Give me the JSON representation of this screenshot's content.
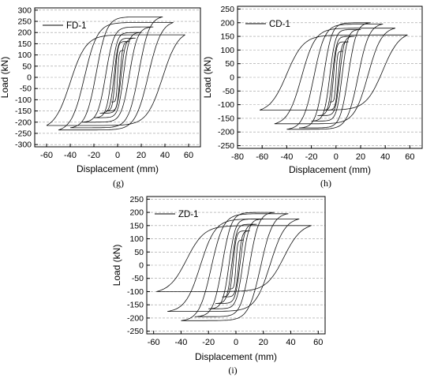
{
  "chart_data": [
    {
      "type": "line",
      "panel_label": "(g)",
      "legend": "FD-1",
      "legend_position": "top-left",
      "xlabel": "Displacement (mm)",
      "ylabel": "Load (kN)",
      "xlim": [
        -70,
        70
      ],
      "ylim": [
        -310,
        310
      ],
      "xticks": [
        -60,
        -40,
        -20,
        0,
        20,
        40,
        60
      ],
      "yticks": [
        -300,
        -250,
        -200,
        -150,
        -100,
        -50,
        0,
        50,
        100,
        150,
        200,
        250,
        300
      ],
      "grid": "dashed-horizontal",
      "cycles": [
        {
          "amp_neg": 5,
          "amp_pos": 5,
          "peak_neg": -110,
          "peak_pos": 120,
          "resid_neg": 0,
          "resid_pos": 0
        },
        {
          "amp_neg": 10,
          "amp_pos": 10,
          "peak_neg": -150,
          "peak_pos": 160,
          "resid_neg": 2,
          "resid_pos": 2
        },
        {
          "amp_neg": 15,
          "amp_pos": 15,
          "peak_neg": -160,
          "peak_pos": 175,
          "resid_neg": 3,
          "resid_pos": 3
        },
        {
          "amp_neg": 20,
          "amp_pos": 20,
          "peak_neg": -180,
          "peak_pos": 200,
          "resid_neg": 5,
          "resid_pos": 5
        },
        {
          "amp_neg": 30,
          "amp_pos": 30,
          "peak_neg": -200,
          "peak_pos": 225,
          "resid_neg": 10,
          "resid_pos": 10
        },
        {
          "amp_neg": 40,
          "amp_pos": 38,
          "peak_neg": -225,
          "peak_pos": 270,
          "resid_neg": 18,
          "resid_pos": 18
        },
        {
          "amp_neg": 50,
          "amp_pos": 47,
          "peak_neg": -235,
          "peak_pos": 245,
          "resid_neg": 28,
          "resid_pos": 26
        },
        {
          "amp_neg": 60,
          "amp_pos": 57,
          "peak_neg": -215,
          "peak_pos": 190,
          "resid_neg": 40,
          "resid_pos": 38
        }
      ]
    },
    {
      "type": "line",
      "panel_label": "(h)",
      "legend": "CD-1",
      "legend_position": "top-left",
      "xlabel": "Displacement (mm)",
      "ylabel": "Load (kN)",
      "xlim": [
        -80,
        70
      ],
      "ylim": [
        -260,
        260
      ],
      "xticks": [
        -80,
        -60,
        -40,
        -20,
        0,
        20,
        40,
        60
      ],
      "yticks": [
        -250,
        -200,
        -150,
        -100,
        -50,
        0,
        50,
        100,
        150,
        200,
        250
      ],
      "grid": "dashed-horizontal",
      "cycles": [
        {
          "amp_neg": 5,
          "amp_pos": 5,
          "peak_neg": -90,
          "peak_pos": 95,
          "resid_neg": 0,
          "resid_pos": 0
        },
        {
          "amp_neg": 10,
          "amp_pos": 10,
          "peak_neg": -120,
          "peak_pos": 130,
          "resid_neg": 2,
          "resid_pos": 2
        },
        {
          "amp_neg": 15,
          "amp_pos": 15,
          "peak_neg": -140,
          "peak_pos": 150,
          "resid_neg": 3,
          "resid_pos": 3
        },
        {
          "amp_neg": 20,
          "amp_pos": 20,
          "peak_neg": -160,
          "peak_pos": 175,
          "resid_neg": 5,
          "resid_pos": 5
        },
        {
          "amp_neg": 30,
          "amp_pos": 28,
          "peak_neg": -185,
          "peak_pos": 200,
          "resid_neg": 10,
          "resid_pos": 10
        },
        {
          "amp_neg": 40,
          "amp_pos": 38,
          "peak_neg": -190,
          "peak_pos": 195,
          "resid_neg": 18,
          "resid_pos": 18
        },
        {
          "amp_neg": 50,
          "amp_pos": 48,
          "peak_neg": -170,
          "peak_pos": 180,
          "resid_neg": 28,
          "resid_pos": 26
        },
        {
          "amp_neg": 62,
          "amp_pos": 58,
          "peak_neg": -120,
          "peak_pos": 155,
          "resid_neg": 40,
          "resid_pos": 38
        }
      ]
    },
    {
      "type": "line",
      "panel_label": "(i)",
      "legend": "ZD-1",
      "legend_position": "top-left",
      "xlabel": "Displacement (mm)",
      "ylabel": "Load (kN)",
      "xlim": [
        -65,
        65
      ],
      "ylim": [
        -260,
        260
      ],
      "xticks": [
        -60,
        -40,
        -20,
        0,
        20,
        40,
        60
      ],
      "yticks": [
        -250,
        -200,
        -150,
        -100,
        -50,
        0,
        50,
        100,
        150,
        200,
        250
      ],
      "grid": "dashed-horizontal",
      "cycles": [
        {
          "amp_neg": 5,
          "amp_pos": 5,
          "peak_neg": -90,
          "peak_pos": 95,
          "resid_neg": 0,
          "resid_pos": 0
        },
        {
          "amp_neg": 10,
          "amp_pos": 10,
          "peak_neg": -120,
          "peak_pos": 130,
          "resid_neg": 2,
          "resid_pos": 2
        },
        {
          "amp_neg": 15,
          "amp_pos": 15,
          "peak_neg": -145,
          "peak_pos": 155,
          "resid_neg": 3,
          "resid_pos": 3
        },
        {
          "amp_neg": 20,
          "amp_pos": 20,
          "peak_neg": -165,
          "peak_pos": 175,
          "resid_neg": 5,
          "resid_pos": 5
        },
        {
          "amp_neg": 30,
          "amp_pos": 28,
          "peak_neg": -195,
          "peak_pos": 200,
          "resid_neg": 10,
          "resid_pos": 10
        },
        {
          "amp_neg": 40,
          "amp_pos": 38,
          "peak_neg": -210,
          "peak_pos": 195,
          "resid_neg": 18,
          "resid_pos": 18
        },
        {
          "amp_neg": 50,
          "amp_pos": 46,
          "peak_neg": -175,
          "peak_pos": 175,
          "resid_neg": 26,
          "resid_pos": 25
        },
        {
          "amp_neg": 58,
          "amp_pos": 55,
          "peak_neg": -100,
          "peak_pos": 150,
          "resid_neg": 36,
          "resid_pos": 35
        }
      ]
    }
  ]
}
